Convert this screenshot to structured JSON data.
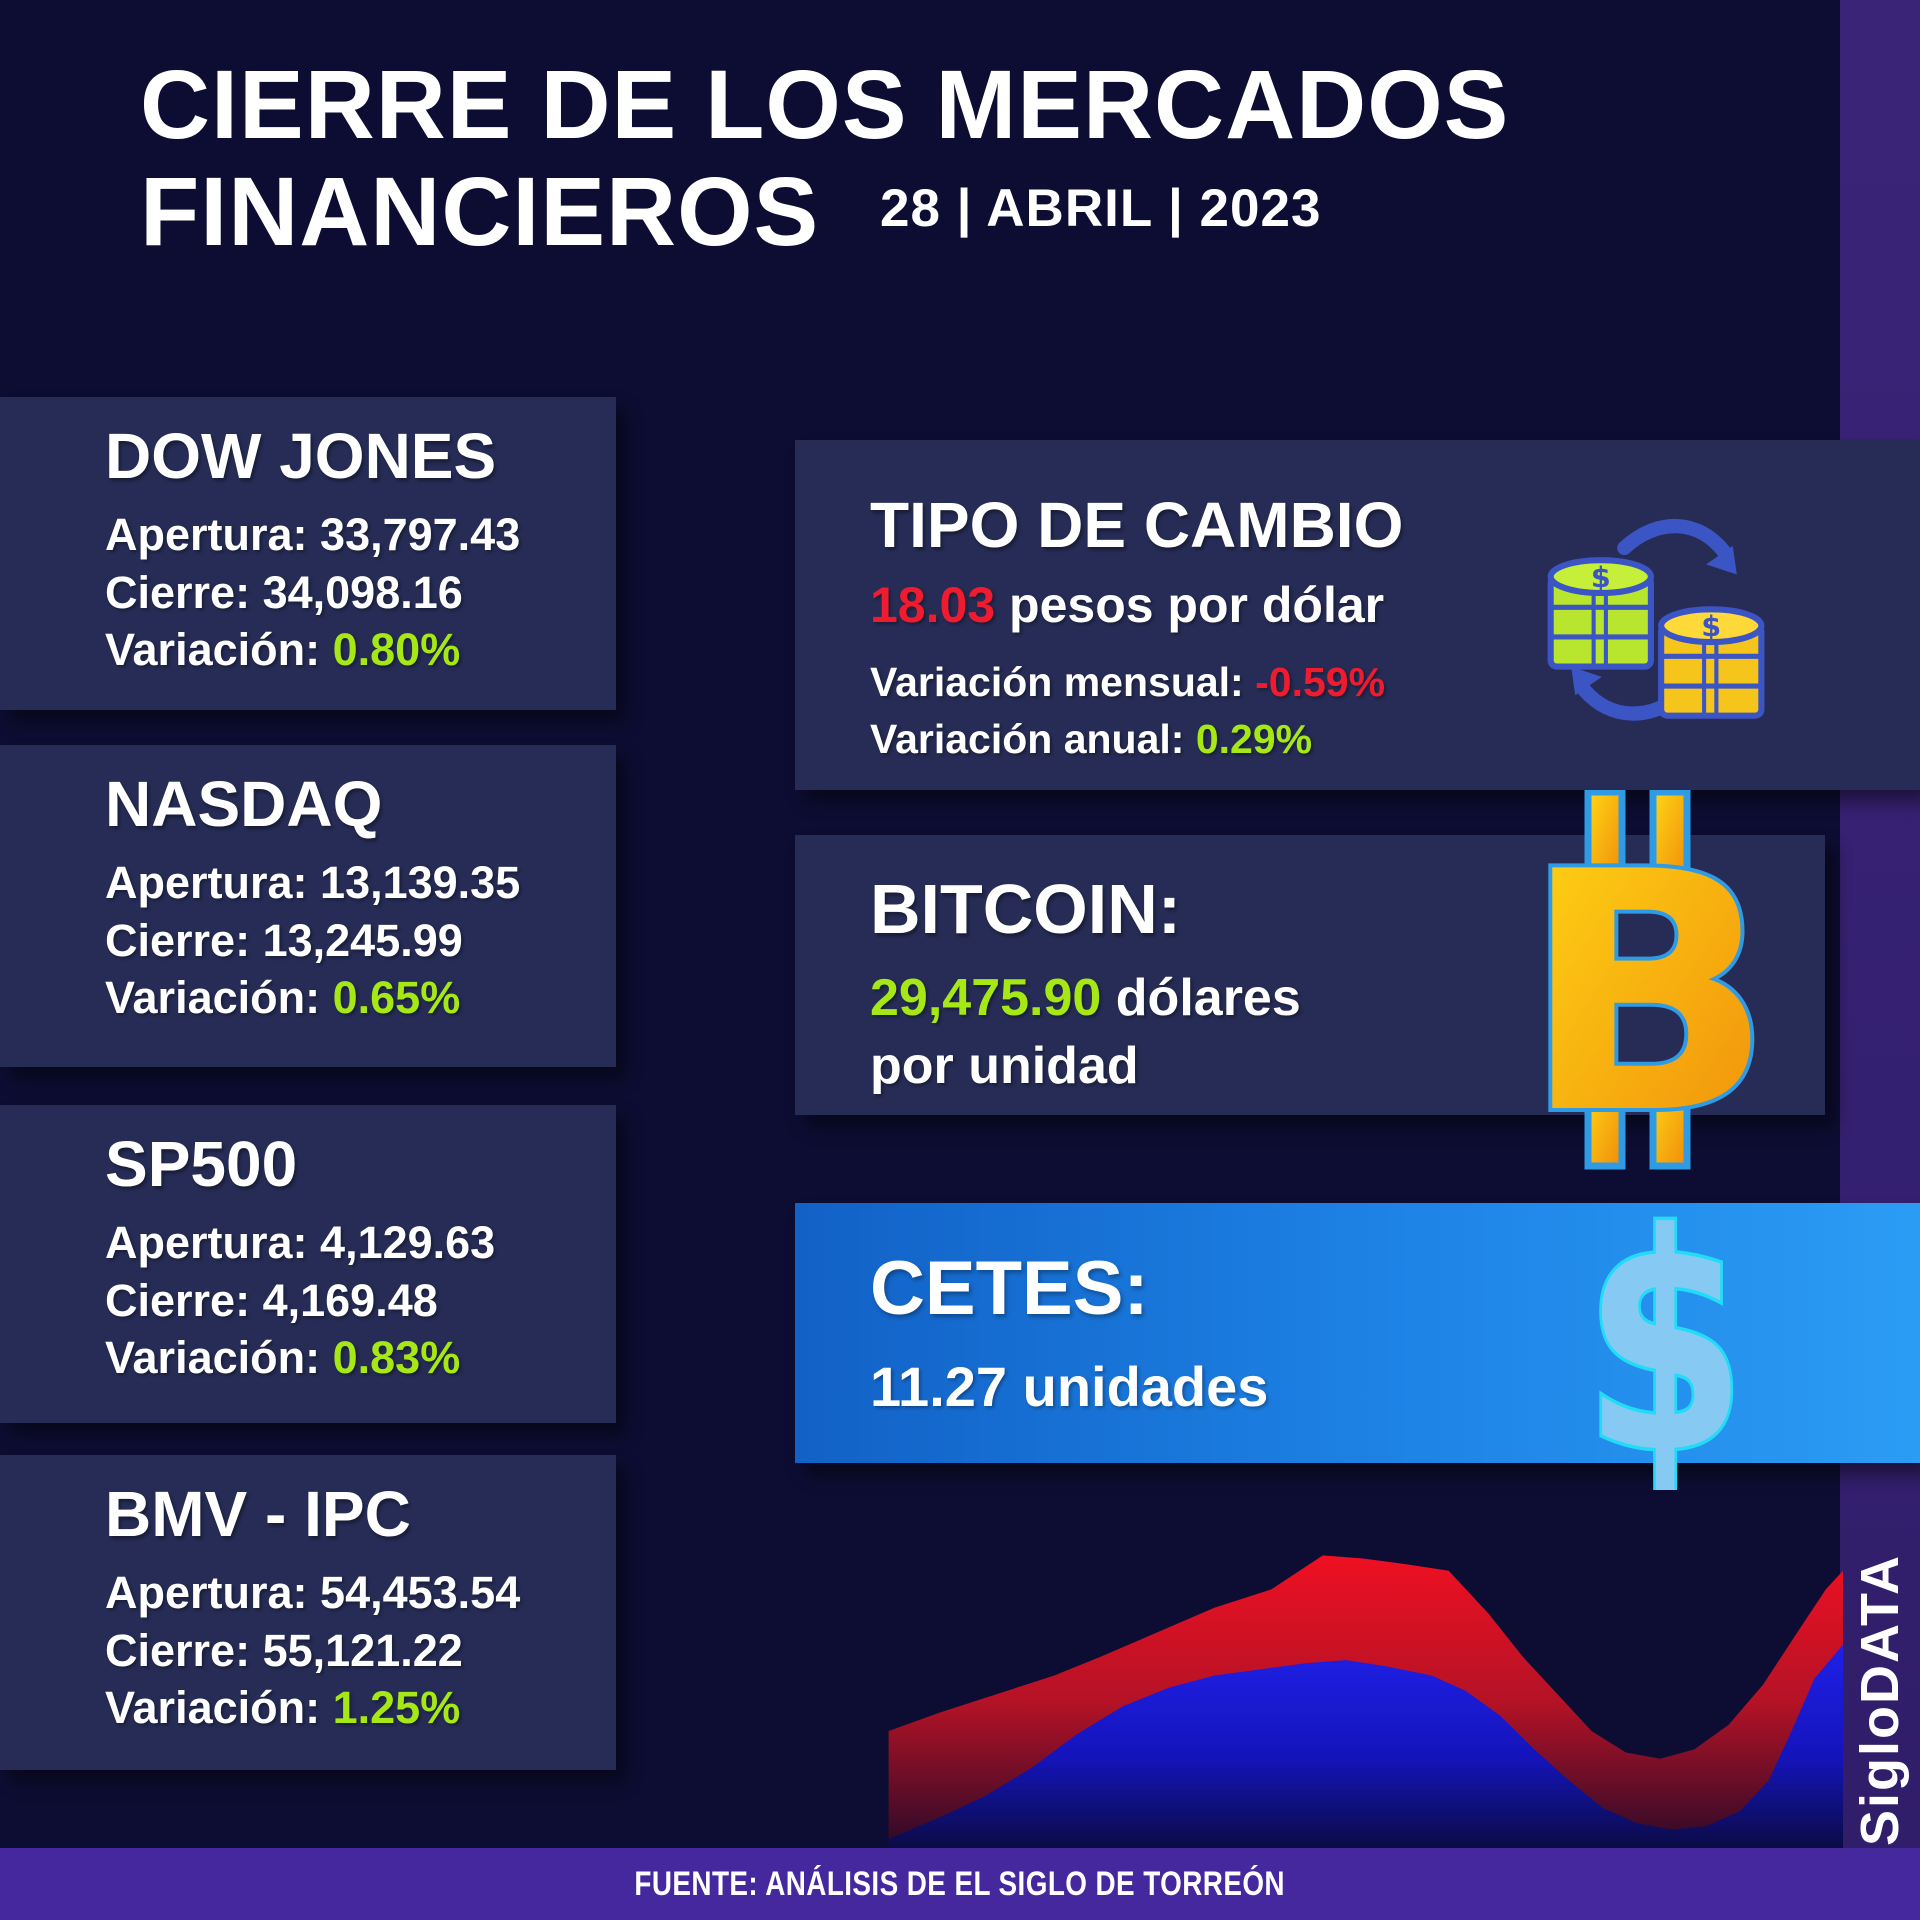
{
  "header": {
    "title_line1": "CIERRE DE LOS MERCADOS",
    "title_line2": "FINANCIEROS",
    "date": "28 | ABRIL | 2023"
  },
  "indices": [
    {
      "title": "DOW JONES",
      "apertura_label": "Apertura:",
      "apertura_value": "33,797.43",
      "cierre_label": "Cierre:",
      "cierre_value": "34,098.16",
      "variacion_label": "Variación:",
      "variacion_value": "0.80%"
    },
    {
      "title": "NASDAQ",
      "apertura_label": "Apertura:",
      "apertura_value": "13,139.35",
      "cierre_label": "Cierre:",
      "cierre_value": "13,245.99",
      "variacion_label": "Variación:",
      "variacion_value": "0.65%"
    },
    {
      "title": "SP500",
      "apertura_label": "Apertura:",
      "apertura_value": "4,129.63",
      "cierre_label": "Cierre:",
      "cierre_value": "4,169.48",
      "variacion_label": "Variación:",
      "variacion_value": "0.83%"
    },
    {
      "title": "BMV - IPC",
      "apertura_label": "Apertura:",
      "apertura_value": "54,453.54",
      "cierre_label": "Cierre:",
      "cierre_value": "55,121.22",
      "variacion_label": "Variación:",
      "variacion_value": "1.25%"
    }
  ],
  "exchange": {
    "title": "TIPO DE CAMBIO",
    "rate": "18.03",
    "rate_suffix": "pesos por dólar",
    "monthly_label": "Variación mensual:",
    "monthly_value": "-0.59%",
    "annual_label": "Variación anual:",
    "annual_value": "0.29%",
    "icon": "currency-exchange-coins-icon"
  },
  "bitcoin": {
    "title": "BITCOIN:",
    "price": "29,475.90",
    "price_suffix": "dólares",
    "unit_line": "por unidad",
    "icon": "bitcoin-symbol-icon"
  },
  "cetes": {
    "title": "CETES:",
    "value": "11.27",
    "value_suffix": "unidades",
    "icon": "dollar-sign-icon"
  },
  "footer": {
    "source": "FUENTE: ANÁLISIS DE EL SIGLO DE TORREÓN",
    "brand": "SigloDATA"
  },
  "colors": {
    "page_bg": "#0d0d33",
    "card_bg": "#262c55",
    "accent_green": "#a6e816",
    "accent_red": "#ee1c2e",
    "cetes_gradient": [
      "#1261c6",
      "#2b9cf4"
    ],
    "purple_strip": "#342070",
    "purple_bar": "#45289d",
    "bitcoin_gold": "#f7a813",
    "bitcoin_outline_blue": "#2f9be5",
    "dollar_fill": "#86c9f3",
    "dollar_outline": "#20dcf7",
    "coin_green": "#b8e62e",
    "coin_gold": "#f6c51c",
    "coin_outline_blue": "#3c55c4",
    "chart_red": "#e01327",
    "chart_blue": "#1b1bd8"
  },
  "chart_data": {
    "type": "area",
    "title": "",
    "xlabel": "",
    "ylabel": "",
    "note": "decorative two-layer market area chart, no axes, ticks or labels shown",
    "grid": false,
    "legend": "none",
    "series": [
      {
        "name": "red-area",
        "color": "#e01327",
        "points": [
          [
            0.165,
            0.62
          ],
          [
            0.21,
            0.56
          ],
          [
            0.26,
            0.5
          ],
          [
            0.31,
            0.44
          ],
          [
            0.35,
            0.38
          ],
          [
            0.4,
            0.3
          ],
          [
            0.45,
            0.22
          ],
          [
            0.5,
            0.16
          ],
          [
            0.545,
            0.05
          ],
          [
            0.58,
            0.06
          ],
          [
            0.62,
            0.08
          ],
          [
            0.655,
            0.1
          ],
          [
            0.69,
            0.24
          ],
          [
            0.72,
            0.38
          ],
          [
            0.75,
            0.5
          ],
          [
            0.78,
            0.62
          ],
          [
            0.81,
            0.69
          ],
          [
            0.84,
            0.71
          ],
          [
            0.87,
            0.68
          ],
          [
            0.9,
            0.6
          ],
          [
            0.93,
            0.47
          ],
          [
            0.96,
            0.3
          ],
          [
            0.985,
            0.16
          ],
          [
            1.0,
            0.1
          ]
        ]
      },
      {
        "name": "blue-area",
        "color": "#1b1bd8",
        "points": [
          [
            0.165,
            0.97
          ],
          [
            0.21,
            0.9
          ],
          [
            0.25,
            0.83
          ],
          [
            0.29,
            0.74
          ],
          [
            0.33,
            0.63
          ],
          [
            0.37,
            0.54
          ],
          [
            0.41,
            0.48
          ],
          [
            0.45,
            0.44
          ],
          [
            0.49,
            0.42
          ],
          [
            0.53,
            0.4
          ],
          [
            0.565,
            0.39
          ],
          [
            0.6,
            0.41
          ],
          [
            0.64,
            0.44
          ],
          [
            0.67,
            0.49
          ],
          [
            0.7,
            0.57
          ],
          [
            0.73,
            0.68
          ],
          [
            0.76,
            0.78
          ],
          [
            0.79,
            0.87
          ],
          [
            0.82,
            0.92
          ],
          [
            0.85,
            0.94
          ],
          [
            0.88,
            0.93
          ],
          [
            0.91,
            0.88
          ],
          [
            0.935,
            0.78
          ],
          [
            0.955,
            0.62
          ],
          [
            0.975,
            0.45
          ],
          [
            1.0,
            0.34
          ]
        ]
      }
    ]
  }
}
